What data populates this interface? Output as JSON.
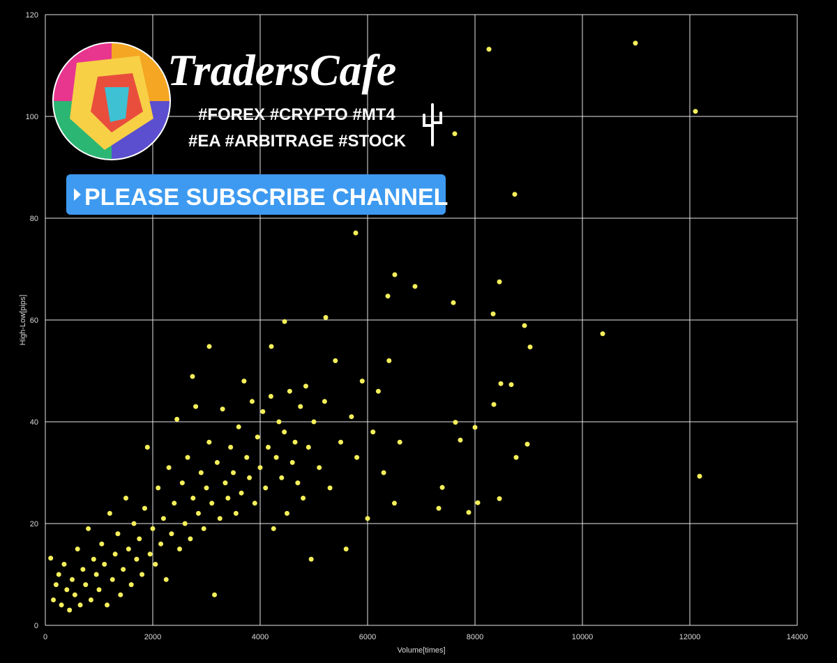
{
  "chart_data": {
    "type": "scatter",
    "x_label": "Volume[times]",
    "y_label": "High-Low[pips]",
    "annotations": [
      "TradersCafe",
      "#FOREX #CRYPTO #MT4",
      "#EA #ARBITRAGE #STOCK",
      "PLEASE SUBSCRIBE CHANNEL"
    ],
    "color": "#f5f05a",
    "grid": true,
    "xlim": [
      0,
      14000
    ],
    "xticks": [
      0,
      2000,
      4000,
      6000,
      8000,
      10000,
      12000,
      14000
    ],
    "ylim": [
      0,
      120
    ],
    "yticks": [
      0,
      20,
      40,
      60,
      80,
      100,
      120
    ],
    "x": [
      8260,
      10987,
      12104,
      7623,
      8740,
      5779,
      6506,
      6883,
      8455,
      6377,
      7597,
      8338,
      8922,
      10377,
      9026,
      12182,
      8766,
      8974,
      8455,
      7883,
      8052,
      8351,
      8481,
      8675,
      8000,
      7636,
      3052,
      4455,
      5221,
      2740,
      4208,
      7325,
      7390,
      7727,
      100,
      150,
      200,
      250,
      300,
      350,
      400,
      450,
      500,
      550,
      600,
      650,
      700,
      750,
      800,
      850,
      900,
      950,
      1000,
      1050,
      1100,
      1150,
      1200,
      1250,
      1300,
      1350,
      1400,
      1450,
      1500,
      1550,
      1600,
      1650,
      1700,
      1750,
      1800,
      1850,
      1900,
      1950,
      2000,
      2050,
      2100,
      2150,
      2200,
      2250,
      2300,
      2350,
      2400,
      2450,
      2500,
      2550,
      2600,
      2650,
      2700,
      2750,
      2800,
      2850,
      2900,
      2950,
      3000,
      3050,
      3100,
      3150,
      3200,
      3250,
      3300,
      3350,
      3400,
      3450,
      3500,
      3550,
      3600,
      3650,
      3700,
      3750,
      3800,
      3850,
      3900,
      3950,
      4000,
      4050,
      4100,
      4150,
      4200,
      4250,
      4300,
      4350,
      4400,
      4450,
      4500,
      4550,
      4600,
      4650,
      4700,
      4750,
      4800,
      4850,
      4900,
      4950,
      5000,
      5100,
      5200,
      5300,
      5400,
      5500,
      5600,
      5700,
      5800,
      5900,
      6000,
      6100,
      6200,
      6300,
      6400,
      6500,
      6600
    ],
    "values": [
      113.2,
      114.4,
      101,
      96.6,
      84.7,
      77.1,
      68.9,
      66.6,
      67.5,
      64.7,
      63.4,
      61.2,
      58.9,
      57.3,
      54.7,
      29.3,
      33,
      35.6,
      24.9,
      22.2,
      24.1,
      43.4,
      47.5,
      47.3,
      38.9,
      39.9,
      54.8,
      59.7,
      60.5,
      48.9,
      54.8,
      23,
      27.1,
      36.4,
      13.2,
      5,
      8,
      10,
      4,
      12,
      7,
      3,
      9,
      6,
      15,
      4,
      11,
      8,
      19,
      5,
      13,
      10,
      7,
      16,
      12,
      4,
      22,
      9,
      14,
      18,
      6,
      11,
      25,
      15,
      8,
      20,
      13,
      17,
      10,
      23,
      35,
      14,
      19,
      12,
      27,
      16,
      21,
      9,
      31,
      18,
      24,
      40.5,
      15,
      28,
      20,
      33,
      17,
      25,
      43,
      22,
      30,
      19,
      27,
      36,
      24,
      6,
      32,
      21,
      42.5,
      28,
      25,
      35,
      30,
      22,
      39,
      26,
      48,
      33,
      29,
      44,
      24,
      37,
      31,
      42,
      27,
      35,
      45,
      19,
      33,
      40,
      29,
      38,
      22,
      46,
      32,
      36,
      28,
      43,
      25,
      47,
      35,
      13,
      40,
      31,
      44,
      27,
      52,
      36,
      15,
      41,
      33,
      48,
      21,
      38,
      46,
      30,
      52,
      24,
      36
    ]
  }
}
